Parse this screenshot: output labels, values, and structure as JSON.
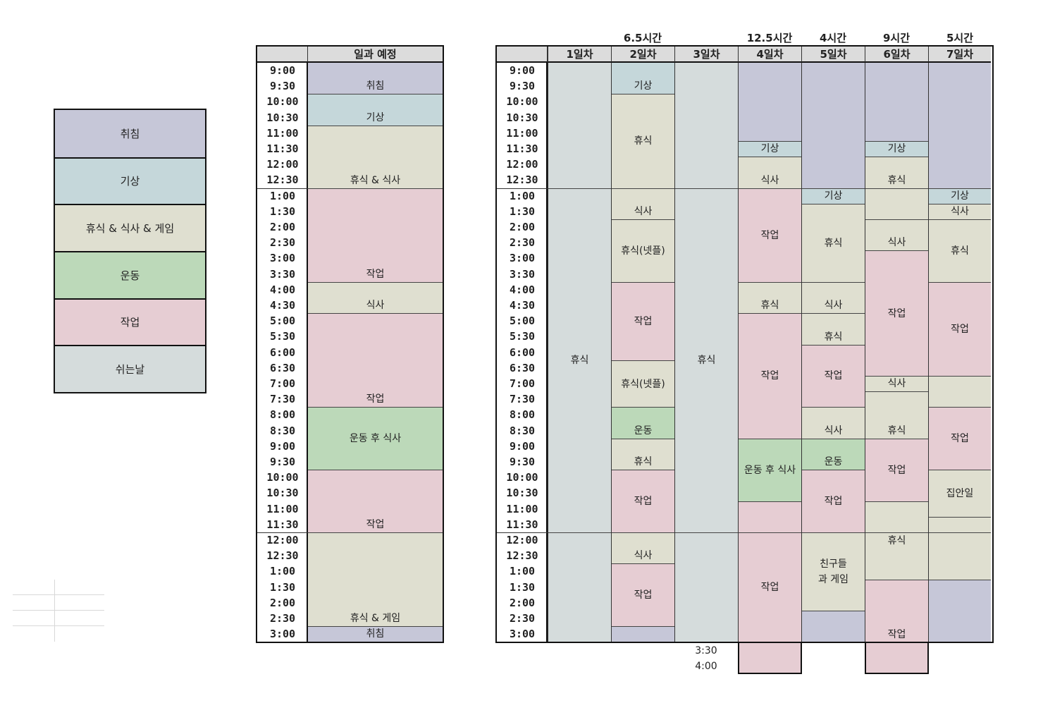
{
  "colors": {
    "sleep": "#c6c7d8",
    "wake": "#c5d7da",
    "rest": "#dfdfd0",
    "exercise": "#bcd9b9",
    "work": "#e6cdd3",
    "dayoff": "#d5dcdc"
  },
  "legend": [
    {
      "label": "취침",
      "color": "sleep"
    },
    {
      "label": "기상",
      "color": "wake"
    },
    {
      "label": "휴식 & 식사 & 게임",
      "color": "rest"
    },
    {
      "label": "운동",
      "color": "exercise"
    },
    {
      "label": "작업",
      "color": "work"
    },
    {
      "label": "쉬는날",
      "color": "dayoff"
    }
  ],
  "times": [
    "9:00",
    "9:30",
    "10:00",
    "10:30",
    "11:00",
    "11:30",
    "12:00",
    "12:30",
    "1:00",
    "1:30",
    "2:00",
    "2:30",
    "3:00",
    "3:30",
    "4:00",
    "4:30",
    "5:00",
    "5:30",
    "6:00",
    "6:30",
    "7:00",
    "7:30",
    "8:00",
    "8:30",
    "9:00",
    "9:30",
    "10:00",
    "10:30",
    "11:00",
    "11:30",
    "12:00",
    "12:30",
    "1:00",
    "1:30",
    "2:00",
    "2:30",
    "3:00"
  ],
  "extra_times": [
    "3:30",
    "4:00"
  ],
  "plan": {
    "header": "일과 예정",
    "blocks": [
      {
        "start": 0,
        "end": 2,
        "label": "취침",
        "color": "sleep"
      },
      {
        "start": 2,
        "end": 4,
        "label": "기상",
        "color": "wake"
      },
      {
        "start": 4,
        "end": 8,
        "label": "휴식 & 식사",
        "color": "rest"
      },
      {
        "start": 8,
        "end": 14,
        "label": "작업",
        "color": "work"
      },
      {
        "start": 14,
        "end": 16,
        "label": "식사",
        "color": "rest"
      },
      {
        "start": 16,
        "end": 22,
        "label": "작업",
        "color": "work"
      },
      {
        "start": 22,
        "end": 26,
        "label": "운동 후 식사",
        "color": "exercise",
        "mid": true
      },
      {
        "start": 26,
        "end": 30,
        "label": "작업",
        "color": "work"
      },
      {
        "start": 30,
        "end": 36,
        "label": "휴식 & 게임",
        "color": "rest"
      },
      {
        "start": 36,
        "end": 37,
        "label": "취침",
        "color": "sleep"
      }
    ]
  },
  "days": [
    {
      "header": "1일차",
      "hours": "",
      "blocks": [
        {
          "start": 0,
          "end": 8,
          "label": "",
          "color": "dayoff"
        },
        {
          "start": 8,
          "end": 30,
          "label": "휴식",
          "color": "dayoff",
          "mid": true
        },
        {
          "start": 30,
          "end": 37,
          "label": "",
          "color": "dayoff"
        }
      ]
    },
    {
      "header": "2일차",
      "hours": "6.5시간",
      "blocks": [
        {
          "start": 0,
          "end": 2,
          "label": "기상",
          "color": "wake"
        },
        {
          "start": 2,
          "end": 8,
          "label": "휴식",
          "color": "rest",
          "mid": true
        },
        {
          "start": 8,
          "end": 10,
          "label": "식사",
          "color": "rest"
        },
        {
          "start": 10,
          "end": 14,
          "label": "휴식(넷플)",
          "color": "rest",
          "mid": true
        },
        {
          "start": 14,
          "end": 19,
          "label": "작업",
          "color": "work",
          "mid": true
        },
        {
          "start": 19,
          "end": 22,
          "label": "휴식(넷플)",
          "color": "rest",
          "mid": true
        },
        {
          "start": 22,
          "end": 24,
          "label": "운동",
          "color": "exercise"
        },
        {
          "start": 24,
          "end": 26,
          "label": "휴식",
          "color": "rest"
        },
        {
          "start": 26,
          "end": 30,
          "label": "작업",
          "color": "work",
          "mid": true
        },
        {
          "start": 30,
          "end": 32,
          "label": "식사",
          "color": "rest"
        },
        {
          "start": 32,
          "end": 36,
          "label": "작업",
          "color": "work",
          "mid": true
        },
        {
          "start": 36,
          "end": 37,
          "label": "",
          "color": "sleep"
        }
      ]
    },
    {
      "header": "3일차",
      "hours": "",
      "blocks": [
        {
          "start": 0,
          "end": 8,
          "label": "",
          "color": "dayoff"
        },
        {
          "start": 8,
          "end": 30,
          "label": "휴식",
          "color": "dayoff",
          "mid": true
        },
        {
          "start": 30,
          "end": 37,
          "label": "",
          "color": "dayoff"
        }
      ]
    },
    {
      "header": "4일차",
      "hours": "12.5시간",
      "blocks": [
        {
          "start": 0,
          "end": 5,
          "label": "",
          "color": "sleep"
        },
        {
          "start": 5,
          "end": 6,
          "label": "기상",
          "color": "wake"
        },
        {
          "start": 6,
          "end": 8,
          "label": "식사",
          "color": "rest"
        },
        {
          "start": 8,
          "end": 14,
          "label": "작업",
          "color": "work",
          "mid": true
        },
        {
          "start": 14,
          "end": 16,
          "label": "휴식",
          "color": "rest"
        },
        {
          "start": 16,
          "end": 24,
          "label": "작업",
          "color": "work",
          "mid": true
        },
        {
          "start": 24,
          "end": 28,
          "label": "운동 후 식사",
          "color": "exercise",
          "mid": true
        },
        {
          "start": 28,
          "end": 30,
          "label": "",
          "color": "work"
        },
        {
          "start": 30,
          "end": 39,
          "label": "작업",
          "color": "work",
          "mid": true
        }
      ]
    },
    {
      "header": "5일차",
      "hours": "4시간",
      "blocks": [
        {
          "start": 0,
          "end": 8,
          "label": "",
          "color": "sleep"
        },
        {
          "start": 8,
          "end": 9,
          "label": "기상",
          "color": "wake"
        },
        {
          "start": 9,
          "end": 14,
          "label": "휴식",
          "color": "rest",
          "mid": true
        },
        {
          "start": 14,
          "end": 16,
          "label": "식사",
          "color": "rest"
        },
        {
          "start": 16,
          "end": 18,
          "label": "휴식",
          "color": "rest"
        },
        {
          "start": 18,
          "end": 22,
          "label": "작업",
          "color": "work",
          "mid": true
        },
        {
          "start": 22,
          "end": 24,
          "label": "식사",
          "color": "rest"
        },
        {
          "start": 24,
          "end": 26,
          "label": "운동",
          "color": "exercise"
        },
        {
          "start": 26,
          "end": 30,
          "label": "작업",
          "color": "work",
          "mid": true
        },
        {
          "start": 30,
          "end": 35,
          "label": "친구들과 게임",
          "color": "rest",
          "mid": true,
          "narrow": true
        },
        {
          "start": 35,
          "end": 37,
          "label": "",
          "color": "sleep"
        }
      ]
    },
    {
      "header": "6일차",
      "hours": "9시간",
      "blocks": [
        {
          "start": 0,
          "end": 5,
          "label": "",
          "color": "sleep"
        },
        {
          "start": 5,
          "end": 6,
          "label": "기상",
          "color": "wake"
        },
        {
          "start": 6,
          "end": 8,
          "label": "휴식",
          "color": "rest"
        },
        {
          "start": 8,
          "end": 10,
          "label": "",
          "color": "rest"
        },
        {
          "start": 10,
          "end": 12,
          "label": "식사",
          "color": "rest"
        },
        {
          "start": 12,
          "end": 20,
          "label": "작업",
          "color": "work",
          "mid": true
        },
        {
          "start": 20,
          "end": 21,
          "label": "식사",
          "color": "rest"
        },
        {
          "start": 21,
          "end": 24,
          "label": "휴식",
          "color": "rest"
        },
        {
          "start": 24,
          "end": 28,
          "label": "작업",
          "color": "work",
          "mid": true
        },
        {
          "start": 28,
          "end": 30,
          "label": "",
          "color": "rest"
        },
        {
          "start": 30,
          "end": 33,
          "label": "휴식",
          "color": "rest",
          "top": true
        },
        {
          "start": 33,
          "end": 39,
          "label": "작업",
          "color": "work",
          "at": 36
        }
      ]
    },
    {
      "header": "7일차",
      "hours": "5시간",
      "blocks": [
        {
          "start": 0,
          "end": 8,
          "label": "",
          "color": "sleep"
        },
        {
          "start": 8,
          "end": 9,
          "label": "기상",
          "color": "wake"
        },
        {
          "start": 9,
          "end": 10,
          "label": "식사",
          "color": "rest"
        },
        {
          "start": 10,
          "end": 14,
          "label": "휴식",
          "color": "rest",
          "mid": true
        },
        {
          "start": 14,
          "end": 20,
          "label": "작업",
          "color": "work",
          "mid": true
        },
        {
          "start": 20,
          "end": 22,
          "label": "",
          "color": "rest"
        },
        {
          "start": 22,
          "end": 26,
          "label": "작업",
          "color": "work",
          "mid": true
        },
        {
          "start": 26,
          "end": 29,
          "label": "집안일",
          "color": "rest",
          "mid": true
        },
        {
          "start": 29,
          "end": 30,
          "label": "",
          "color": "rest"
        },
        {
          "start": 30,
          "end": 33,
          "label": "",
          "color": "rest"
        },
        {
          "start": 33,
          "end": 37,
          "label": "",
          "color": "sleep"
        }
      ]
    }
  ]
}
